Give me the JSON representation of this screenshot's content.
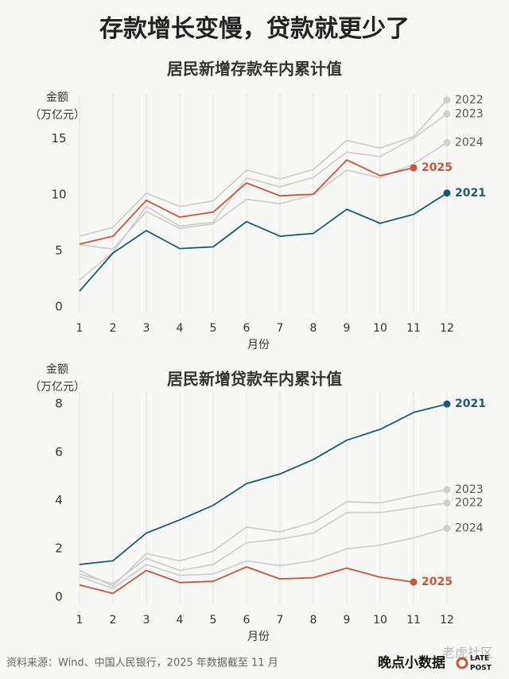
{
  "title": "存款增长变慢，贷款就更少了",
  "source": "资料来源：Wind、中国人民银行，2025 年数据截至 11 月",
  "brand": "晚点小数据",
  "logo": [
    "LATE",
    "POST"
  ],
  "watermark": "老虎社区",
  "chart_data": [
    {
      "type": "line",
      "title": "居民新增存款年内累计值",
      "ylabel": [
        "金额",
        "（万亿元）"
      ],
      "xlabel": "月份",
      "x": [
        1,
        2,
        3,
        4,
        5,
        6,
        7,
        8,
        9,
        10,
        11,
        12
      ],
      "xlim": [
        1,
        12
      ],
      "xticks": [
        1,
        2,
        3,
        4,
        5,
        6,
        7,
        8,
        9,
        10,
        11,
        12
      ],
      "ylim": [
        -0.5,
        19
      ],
      "yticks": [
        0,
        5,
        10,
        15
      ],
      "grid": true,
      "series": [
        {
          "name": "2022",
          "color": "#cfcfcf",
          "values": [
            6.3,
            7.1,
            10.15,
            8.95,
            9.45,
            12.2,
            11.4,
            12.25,
            14.85,
            14.15,
            15.2,
            18.45
          ]
        },
        {
          "name": "2023",
          "color": "#cfcfcf",
          "values": [
            2.4,
            4.85,
            8.95,
            7.2,
            7.55,
            11.5,
            10.7,
            11.55,
            13.8,
            13.4,
            15.05,
            17.2
          ]
        },
        {
          "name": "2024",
          "color": "#cfcfcf",
          "values": [
            5.55,
            5.15,
            8.5,
            7.0,
            7.4,
            9.6,
            9.2,
            10.0,
            12.2,
            11.5,
            12.75,
            14.65
          ]
        },
        {
          "name": "2021",
          "color": "#1d5a6e",
          "values": [
            1.4,
            4.8,
            6.8,
            5.2,
            5.35,
            7.6,
            6.3,
            6.55,
            8.7,
            7.45,
            8.25,
            10.15
          ]
        },
        {
          "name": "2025",
          "color": "#c8553d",
          "values": [
            5.6,
            6.3,
            9.5,
            8.0,
            8.45,
            11.05,
            9.9,
            10.05,
            13.1,
            11.7,
            12.4,
            null
          ]
        }
      ]
    },
    {
      "type": "line",
      "title": "居民新增贷款年内累计值",
      "ylabel": [
        "金额",
        "（万亿元）"
      ],
      "xlabel": "月份",
      "x": [
        1,
        2,
        3,
        4,
        5,
        6,
        7,
        8,
        9,
        10,
        11,
        12
      ],
      "xlim": [
        1,
        12
      ],
      "xticks": [
        1,
        2,
        3,
        4,
        5,
        6,
        7,
        8,
        9,
        10,
        11,
        12
      ],
      "ylim": [
        -0.3,
        8.5
      ],
      "yticks": [
        0,
        2,
        4,
        6,
        8
      ],
      "grid": true,
      "series": [
        {
          "name": "2023",
          "color": "#cfcfcf",
          "values": [
            1.1,
            0.45,
            1.8,
            1.5,
            1.9,
            2.9,
            2.7,
            3.1,
            3.95,
            3.9,
            4.2,
            4.45
          ]
        },
        {
          "name": "2022",
          "color": "#cfcfcf",
          "values": [
            0.95,
            0.55,
            1.6,
            1.1,
            1.35,
            2.25,
            2.4,
            2.65,
            3.5,
            3.5,
            3.7,
            3.9
          ]
        },
        {
          "name": "2024",
          "color": "#cfcfcf",
          "values": [
            0.85,
            0.35,
            1.35,
            0.9,
            0.95,
            1.5,
            1.3,
            1.5,
            2.0,
            2.15,
            2.45,
            2.85
          ]
        },
        {
          "name": "2021",
          "color": "#1d5a6e",
          "values": [
            1.35,
            1.5,
            2.65,
            3.2,
            3.8,
            4.7,
            5.1,
            5.7,
            6.5,
            6.95,
            7.65,
            8.0
          ]
        },
        {
          "name": "2025",
          "color": "#c8553d",
          "values": [
            0.5,
            0.15,
            1.1,
            0.6,
            0.65,
            1.25,
            0.75,
            0.8,
            1.2,
            0.82,
            0.62,
            null
          ]
        }
      ]
    }
  ]
}
